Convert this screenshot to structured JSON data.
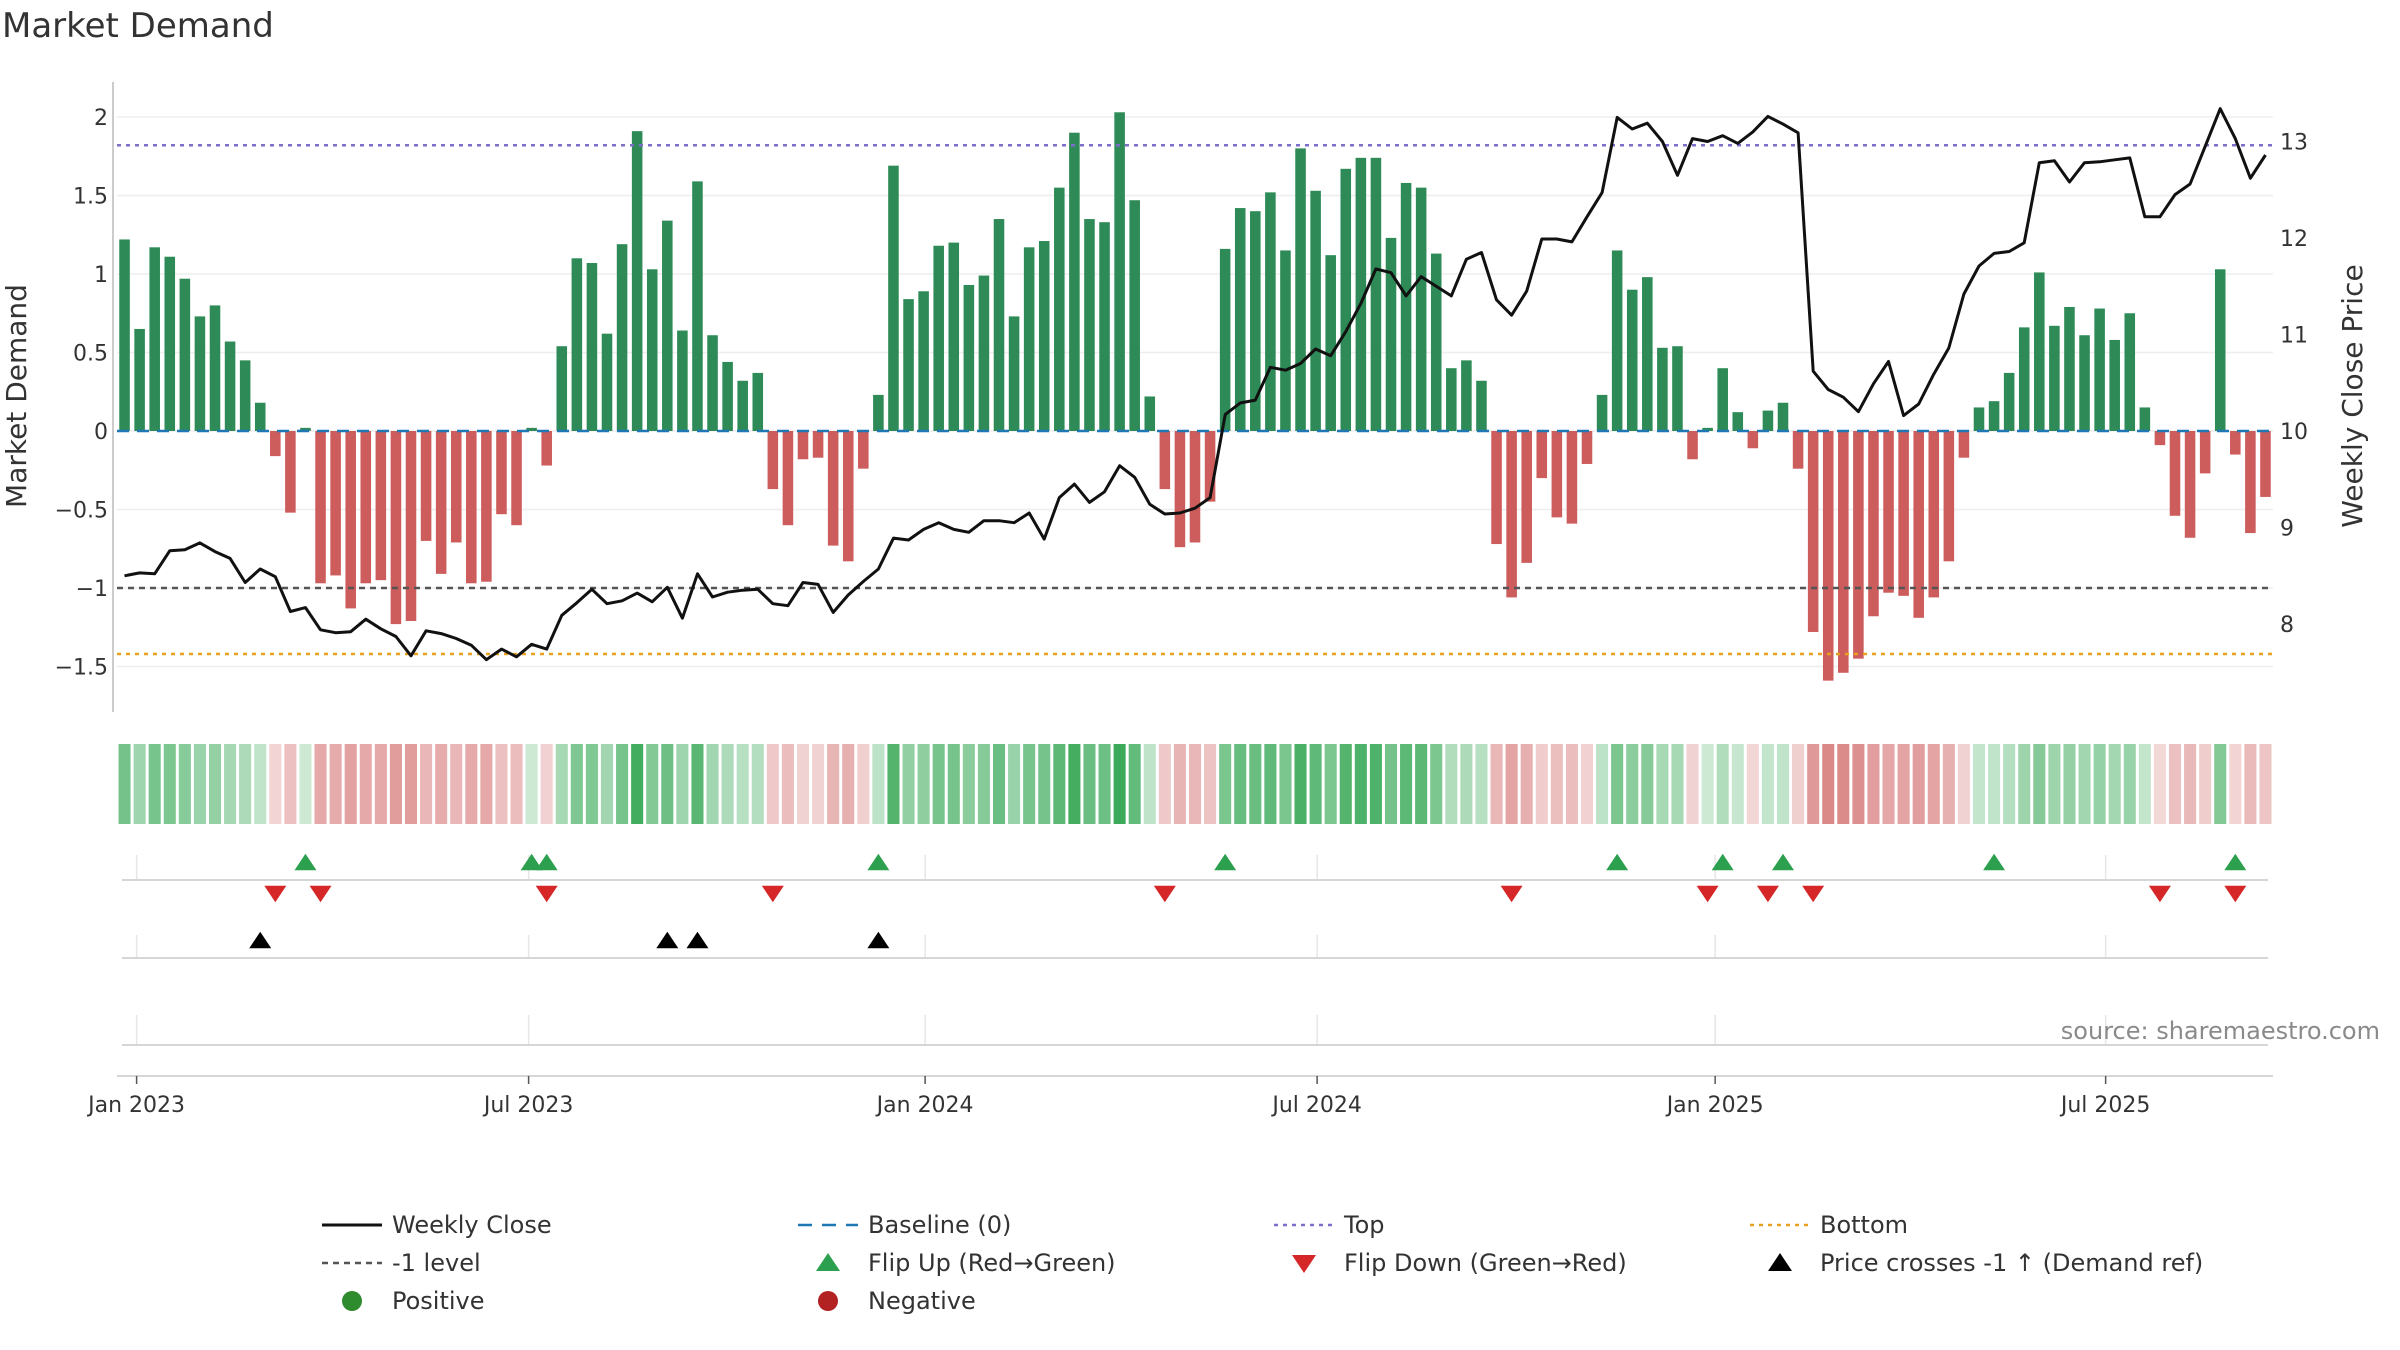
{
  "chart_data": {
    "type": "bar+line",
    "title": "Market Demand",
    "ylabel_left": "Market Demand",
    "ylabel_right": "Weekly Close Price",
    "source": "source: sharemaestro.com",
    "y_left_ticks": [
      2,
      1.5,
      1,
      0.5,
      0,
      -0.5,
      -1,
      -1.5
    ],
    "y_left_tick_labels": [
      "2",
      "1.5",
      "1",
      "0.5",
      "0",
      "−0.5",
      "−1",
      "−1.5"
    ],
    "y_right_ticks": [
      13,
      12,
      11,
      10,
      9,
      8
    ],
    "y_right_tick_labels": [
      "13",
      "12",
      "11",
      "10",
      "9",
      "8"
    ],
    "ylim_left": [
      -1.8,
      2.25
    ],
    "ylim_right": [
      6.95,
      13.45
    ],
    "x_ticks": [
      {
        "label": "Jan 2023",
        "week": 1.3
      },
      {
        "label": "Jul 2023",
        "week": 27.3
      },
      {
        "label": "Jan 2024",
        "week": 53.6
      },
      {
        "label": "Jul 2024",
        "week": 79.6
      },
      {
        "label": "Jan 2025",
        "week": 106
      },
      {
        "label": "Jul 2025",
        "week": 131.9
      }
    ],
    "levels": {
      "top": 1.82,
      "bottom": -1.42,
      "minus_one": -1.0,
      "baseline": 0
    },
    "demand": [
      1.22,
      0.65,
      1.17,
      1.11,
      0.97,
      0.73,
      0.8,
      0.57,
      0.45,
      0.18,
      -0.16,
      -0.52,
      0.02,
      -0.97,
      -0.92,
      -1.13,
      -0.97,
      -0.95,
      -1.23,
      -1.21,
      -0.7,
      -0.91,
      -0.71,
      -0.97,
      -0.96,
      -0.53,
      -0.6,
      0.02,
      -0.22,
      0.54,
      1.1,
      1.07,
      0.62,
      1.19,
      1.91,
      1.03,
      1.34,
      0.64,
      1.59,
      0.61,
      0.44,
      0.32,
      0.37,
      -0.37,
      -0.6,
      -0.18,
      -0.17,
      -0.73,
      -0.83,
      -0.24,
      0.23,
      1.69,
      0.84,
      0.89,
      1.18,
      1.2,
      0.93,
      0.99,
      1.35,
      0.73,
      1.17,
      1.21,
      1.55,
      1.9,
      1.35,
      1.33,
      2.03,
      1.47,
      0.22,
      -0.37,
      -0.74,
      -0.71,
      -0.45,
      1.16,
      1.42,
      1.4,
      1.52,
      1.15,
      1.8,
      1.53,
      1.12,
      1.67,
      1.74,
      1.74,
      1.23,
      1.58,
      1.55,
      1.13,
      0.4,
      0.45,
      0.32,
      -0.72,
      -1.06,
      -0.84,
      -0.3,
      -0.55,
      -0.59,
      -0.21,
      0.23,
      1.15,
      0.9,
      0.98,
      0.53,
      0.54,
      -0.18,
      0.02,
      0.4,
      0.12,
      -0.11,
      0.13,
      0.18,
      -0.24,
      -1.28,
      -1.59,
      -1.54,
      -1.45,
      -1.18,
      -1.03,
      -1.05,
      -1.19,
      -1.06,
      -0.83,
      -0.17,
      0.15,
      0.19,
      0.37,
      0.66,
      1.01,
      0.67,
      0.79,
      0.61,
      0.78,
      0.58,
      0.75,
      0.15,
      -0.09,
      -0.54,
      -0.68,
      -0.27,
      1.03,
      -0.15,
      -0.65,
      -0.42
    ],
    "price": [
      8.5,
      8.53,
      8.52,
      8.76,
      8.77,
      8.84,
      8.75,
      8.68,
      8.43,
      8.57,
      8.49,
      8.13,
      8.17,
      7.94,
      7.91,
      7.92,
      8.05,
      7.95,
      7.87,
      7.67,
      7.93,
      7.9,
      7.85,
      7.78,
      7.63,
      7.74,
      7.66,
      7.79,
      7.74,
      8.09,
      8.22,
      8.36,
      8.21,
      8.24,
      8.32,
      8.23,
      8.38,
      8.06,
      8.52,
      8.28,
      8.33,
      8.35,
      8.36,
      8.21,
      8.19,
      8.43,
      8.41,
      8.12,
      8.3,
      8.44,
      8.57,
      8.89,
      8.87,
      8.98,
      9.05,
      8.98,
      8.95,
      9.07,
      9.07,
      9.05,
      9.15,
      8.88,
      9.31,
      9.45,
      9.26,
      9.37,
      9.64,
      9.52,
      9.24,
      9.14,
      9.15,
      9.2,
      9.31,
      10.17,
      10.29,
      10.32,
      10.66,
      10.63,
      10.7,
      10.85,
      10.78,
      11.03,
      11.32,
      11.68,
      11.64,
      11.4,
      11.6,
      11.5,
      11.4,
      11.78,
      11.85,
      11.36,
      11.2,
      11.45,
      11.99,
      11.99,
      11.96,
      12.22,
      12.47,
      13.25,
      13.13,
      13.19,
      13.0,
      12.65,
      13.03,
      13.0,
      13.06,
      12.98,
      13.1,
      13.26,
      13.18,
      13.09,
      10.62,
      10.43,
      10.35,
      10.2,
      10.49,
      10.72,
      10.16,
      10.28,
      10.59,
      10.86,
      11.42,
      11.71,
      11.84,
      11.86,
      11.95,
      12.78,
      12.8,
      12.58,
      12.78,
      12.79,
      12.81,
      12.83,
      12.22,
      12.22,
      12.45,
      12.56,
      12.95,
      13.34,
      13.03,
      12.62,
      12.86
    ],
    "flip_up_weeks": [
      12,
      27,
      28,
      50,
      73,
      99,
      106,
      110,
      124,
      140
    ],
    "flip_down_weeks": [
      10,
      13,
      28,
      43,
      69,
      92,
      105,
      109,
      112,
      135,
      140
    ],
    "price_cross_weeks": [
      9,
      36,
      38,
      50
    ],
    "legend": [
      {
        "label": "Weekly Close",
        "kind": "line",
        "color": "#111111"
      },
      {
        "label": "Baseline (0)",
        "kind": "dash",
        "color": "#1f77b4"
      },
      {
        "label": "Top",
        "kind": "dot",
        "color": "#7b6fc9"
      },
      {
        "label": "Bottom",
        "kind": "dot",
        "color": "#e8a020"
      },
      {
        "label": "-1 level",
        "kind": "dash",
        "color": "#555555"
      },
      {
        "label": "Flip Up (Red→Green)",
        "kind": "tri-up",
        "color": "#2ca04f"
      },
      {
        "label": "Flip Down (Green→Red)",
        "kind": "tri-down",
        "color": "#d62728"
      },
      {
        "label": "Price crosses -1 ↑ (Demand ref)",
        "kind": "tri-up",
        "color": "#000000"
      },
      {
        "label": "Positive",
        "kind": "circle",
        "color": "#2e8b2e"
      },
      {
        "label": "Negative",
        "kind": "circle",
        "color": "#b22222"
      }
    ],
    "colors": {
      "positive": "#2e8b57",
      "negative": "#cd5c5c"
    }
  }
}
